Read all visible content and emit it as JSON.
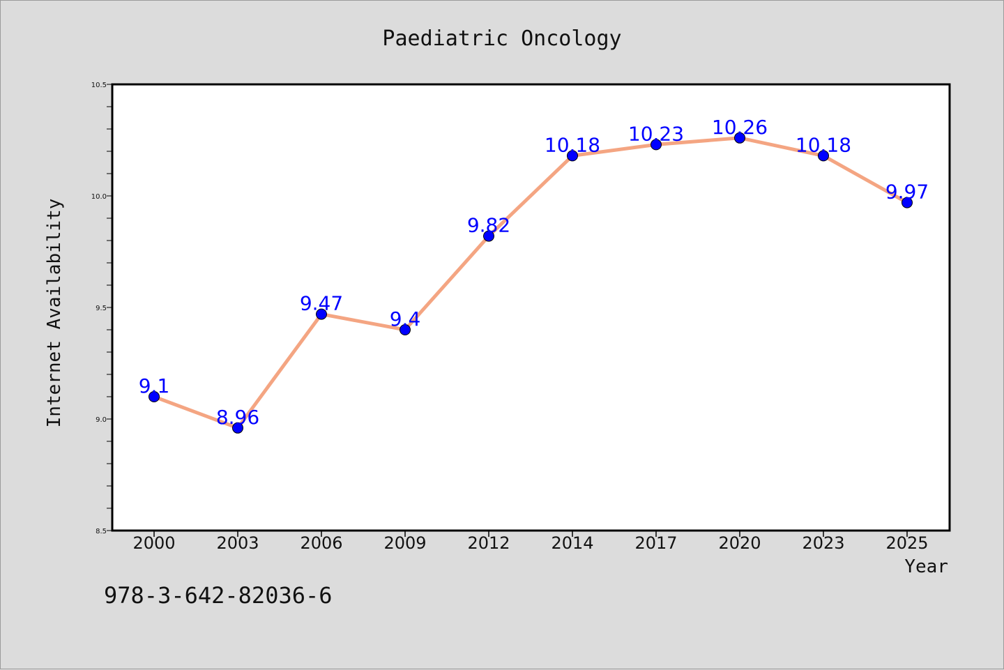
{
  "chart_data": {
    "type": "line",
    "title": "Paediatric Oncology",
    "xlabel": "Year",
    "ylabel": "Internet Availability",
    "categories": [
      "2000",
      "2003",
      "2006",
      "2009",
      "2012",
      "2014",
      "2017",
      "2020",
      "2023",
      "2025"
    ],
    "series": [
      {
        "values": [
          9.1,
          8.96,
          9.47,
          9.4,
          9.82,
          10.18,
          10.23,
          10.26,
          10.18,
          9.97
        ]
      }
    ],
    "data_labels": [
      "9.1",
      "8.96",
      "9.47",
      "9.4",
      "9.82",
      "10.18",
      "10.23",
      "10.26",
      "10.18",
      "9.97"
    ],
    "ylim": [
      8.5,
      10.5
    ],
    "yticks": [
      "8.5",
      "9.0",
      "9.5",
      "10.0",
      "10.5"
    ],
    "grid": false,
    "legend": "none",
    "colors": {
      "line": "#f4a582",
      "marker": "#0000ff",
      "label": "#0000ff",
      "background": "#dcdcdc",
      "plot": "#ffffff"
    }
  },
  "footer": {
    "isbn": "978-3-642-82036-6"
  }
}
